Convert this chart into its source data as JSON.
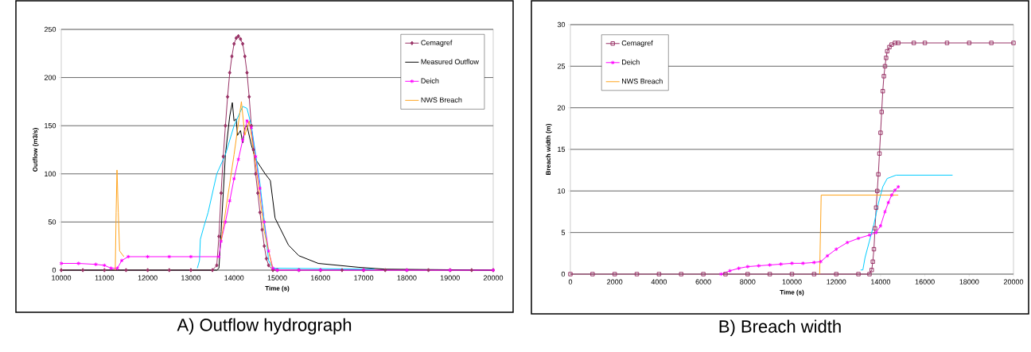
{
  "chart_data": [
    {
      "type": "line",
      "title": "A) Outflow hydrograph",
      "xlabel": "Time (s)",
      "ylabel": "Outflow (m3/s)",
      "xlim": [
        10000,
        20000
      ],
      "ylim": [
        0,
        250
      ],
      "xticks": [
        10000,
        11000,
        12000,
        13000,
        14000,
        15000,
        16000,
        17000,
        18000,
        19000,
        20000
      ],
      "yticks": [
        0,
        50,
        100,
        150,
        200,
        250
      ],
      "grid": "y",
      "legend": "top right",
      "line_style": "solid",
      "series": [
        {
          "name": "Cemagref",
          "color": "#993366",
          "marker": "diamond",
          "x": [
            10000,
            10500,
            11000,
            11500,
            12000,
            12500,
            13000,
            13500,
            13600,
            13650,
            13700,
            13750,
            13800,
            13850,
            13900,
            13950,
            14000,
            14050,
            14100,
            14150,
            14200,
            14250,
            14300,
            14350,
            14400,
            14450,
            14500,
            14550,
            14600,
            14650,
            14700,
            14750,
            14800,
            14900,
            15000,
            15500,
            16000,
            16500,
            17000,
            17500,
            18000,
            18500,
            19000,
            19500,
            20000
          ],
          "values": [
            0,
            0,
            0,
            0,
            0,
            0,
            0,
            0,
            5,
            35,
            80,
            118,
            150,
            180,
            205,
            222,
            235,
            241,
            243,
            240,
            235,
            222,
            205,
            180,
            150,
            125,
            100,
            80,
            60,
            42,
            25,
            12,
            5,
            0,
            0,
            0,
            0,
            0,
            0,
            0,
            0,
            0,
            0,
            0,
            0
          ]
        },
        {
          "name": "Measured Outflow",
          "color": "#000000",
          "marker": "none",
          "x": [
            10000,
            13600,
            13650,
            13700,
            13800,
            13900,
            13960,
            14000,
            14050,
            14080,
            14150,
            14200,
            14250,
            14300,
            14400,
            14500,
            14720,
            14840,
            14950,
            15260,
            15500,
            15950,
            16870,
            17500,
            20000
          ],
          "values": [
            0,
            0,
            2,
            40,
            120,
            160,
            174,
            155,
            157,
            140,
            145,
            132,
            148,
            150,
            130,
            115,
            100,
            93,
            54,
            26,
            15,
            7,
            3,
            1,
            0
          ]
        },
        {
          "name": "Deich",
          "color": "#ff00ff",
          "marker": "cross",
          "x": [
            10000,
            10400,
            10800,
            11000,
            11150,
            11300,
            11400,
            11550,
            12000,
            12500,
            13000,
            13650,
            13700,
            13800,
            13900,
            14000,
            14100,
            14200,
            14300,
            14400,
            14500,
            14600,
            14700,
            14800,
            14900,
            15000,
            15500,
            16000,
            17000,
            18000,
            19000,
            20000
          ],
          "values": [
            7,
            7,
            6,
            5,
            2,
            2,
            10,
            14,
            14,
            14,
            14,
            14,
            30,
            50,
            72,
            95,
            115,
            135,
            155,
            148,
            118,
            85,
            50,
            20,
            2,
            0,
            0,
            0,
            0,
            0,
            0,
            0
          ]
        },
        {
          "color": "#00ccff",
          "marker": "none",
          "x": [
            13150,
            13200,
            13220,
            13300,
            13400,
            13500,
            13600,
            13800,
            14000,
            14200,
            14300,
            14400,
            14500,
            14600,
            14700,
            14800,
            14900,
            17250
          ],
          "values": [
            2,
            10,
            32,
            45,
            60,
            80,
            100,
            120,
            150,
            170,
            168,
            150,
            120,
            90,
            50,
            10,
            2,
            1
          ]
        },
        {
          "name": "NWS Breach",
          "color": "#ffa31a",
          "marker": "none",
          "x": [
            11250,
            11270,
            11290,
            11320,
            11350,
            11450,
            13650,
            13700,
            14000,
            14170,
            14250,
            14350,
            14500,
            14700,
            14900
          ],
          "values": [
            0,
            60,
            104,
            60,
            20,
            14,
            null,
            30,
            120,
            175,
            140,
            155,
            110,
            40,
            0
          ]
        }
      ]
    },
    {
      "type": "line",
      "title": "B) Breach width",
      "xlabel": "Time (s)",
      "ylabel": "Breach width (m)",
      "xlim": [
        0,
        20000
      ],
      "ylim": [
        0,
        30
      ],
      "xticks": [
        0,
        2000,
        4000,
        6000,
        8000,
        10000,
        12000,
        14000,
        16000,
        18000,
        20000
      ],
      "yticks": [
        0,
        5,
        10,
        15,
        20,
        25,
        30
      ],
      "grid": "y",
      "legend": "top left",
      "line_style": "solid",
      "series": [
        {
          "name": "Cemagref",
          "color": "#993366",
          "marker": "square",
          "x": [
            0,
            1000,
            2000,
            3000,
            4000,
            5000,
            6000,
            7000,
            8000,
            9000,
            10000,
            11000,
            12000,
            13000,
            13500,
            13600,
            13650,
            13700,
            13750,
            13800,
            13850,
            13900,
            13950,
            14000,
            14050,
            14100,
            14150,
            14200,
            14250,
            14300,
            14400,
            14500,
            14650,
            14800,
            15500,
            16000,
            17000,
            18000,
            19000,
            20000
          ],
          "values": [
            0,
            0,
            0,
            0,
            0,
            0,
            0,
            0,
            0,
            0,
            0,
            0,
            0,
            0,
            0,
            0.5,
            1.5,
            3,
            5.5,
            8,
            10,
            12,
            14.5,
            17,
            19.5,
            22,
            23.8,
            25,
            26,
            26.8,
            27.3,
            27.6,
            27.8,
            27.8,
            27.8,
            27.8,
            27.8,
            27.8,
            27.8,
            27.8
          ]
        },
        {
          "name": "Deich",
          "color": "#ff00ff",
          "marker": "cross",
          "x": [
            6800,
            7200,
            7600,
            8000,
            8500,
            9000,
            9500,
            10000,
            10500,
            11000,
            11300,
            11600,
            12000,
            12500,
            13000,
            13500,
            13800,
            14000,
            14200,
            14350,
            14500,
            14650,
            14800
          ],
          "values": [
            0,
            0.4,
            0.7,
            0.9,
            1,
            1.1,
            1.2,
            1.3,
            1.3,
            1.4,
            1.5,
            2.2,
            3,
            3.8,
            4.3,
            4.7,
            5,
            5.8,
            7.5,
            8.6,
            9.5,
            10.1,
            10.5
          ]
        },
        {
          "color": "#00ccff",
          "marker": "none",
          "x": [
            13100,
            13200,
            13300,
            13500,
            13700,
            13900,
            14100,
            14300,
            14700,
            17250
          ],
          "values": [
            0.5,
            0.5,
            2,
            4,
            6,
            8.5,
            10.5,
            11.5,
            11.9,
            11.9
          ]
        },
        {
          "name": "NWS Breach",
          "color": "#ffa31a",
          "marker": "none",
          "x": [
            11250,
            11320,
            14800
          ],
          "values": [
            0,
            9.5,
            9.5
          ]
        }
      ]
    }
  ]
}
